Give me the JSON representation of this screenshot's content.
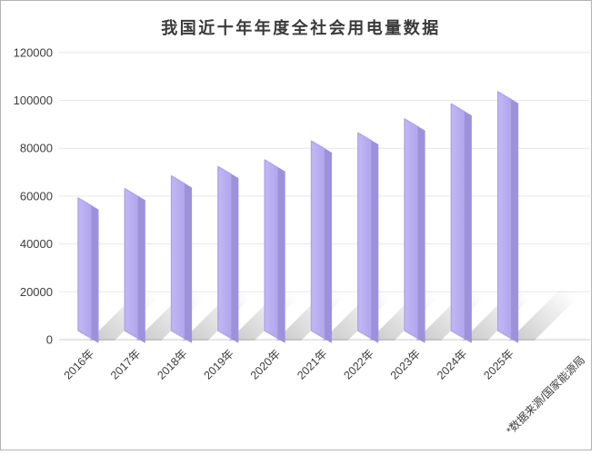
{
  "page": {
    "background": "#ffffff",
    "frame_border_color": "#b3b3b3"
  },
  "chart_data": {
    "type": "bar",
    "title": "我国近十年年度全社会用电量数据",
    "categories": [
      "2016年",
      "2017年",
      "2018年",
      "2019年",
      "2020年",
      "2021年",
      "2022年",
      "2023年",
      "2024年",
      "2025年"
    ],
    "values": [
      59200,
      63100,
      68400,
      72300,
      75100,
      83000,
      86400,
      92200,
      98500,
      103600
    ],
    "xlabel": "",
    "ylabel": "",
    "ylim": [
      0,
      120000
    ],
    "yticks": [
      0,
      20000,
      40000,
      60000,
      80000,
      100000,
      120000
    ],
    "grid": "horizontal",
    "legend": "none",
    "bar_style": "3d-slanted-with-floor-shadow",
    "x_label_rotation_deg": 45,
    "source_note": "*数据来源/国家能源局",
    "colors": {
      "bar_face": "#b0a5ec",
      "bar_face_light": "#c2b8f4",
      "bar_side": "#9d92da",
      "shadow": "#8c8c8c",
      "gridline": "#e7e7e7",
      "axis_line": "#d8d8d8",
      "text": "#3d3d3d",
      "title": "#3a3a3a"
    }
  }
}
